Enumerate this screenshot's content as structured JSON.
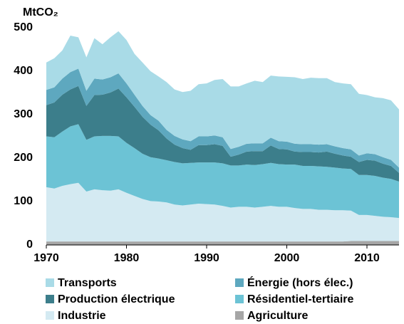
{
  "chart_data": {
    "type": "stacked_area",
    "y_label": "MtCO₂",
    "x": [
      1970,
      1971,
      1972,
      1973,
      1974,
      1975,
      1976,
      1977,
      1978,
      1979,
      1980,
      1981,
      1982,
      1983,
      1984,
      1985,
      1986,
      1987,
      1988,
      1989,
      1990,
      1991,
      1992,
      1993,
      1994,
      1995,
      1996,
      1997,
      1998,
      1999,
      2000,
      2001,
      2002,
      2003,
      2004,
      2005,
      2006,
      2007,
      2008,
      2009,
      2010,
      2011,
      2012,
      2013,
      2014
    ],
    "xlim": [
      1970,
      2014
    ],
    "xticks": [
      1970,
      1980,
      1990,
      2000,
      2010
    ],
    "ylim": [
      0,
      500
    ],
    "yticks": [
      0,
      100,
      200,
      300,
      400,
      500
    ],
    "grid": false,
    "legend": "bottom",
    "series": [
      {
        "name": "Transports",
        "color": "#a9dbe7",
        "values": [
          63,
          67,
          65,
          84,
          72,
          77,
          93,
          81,
          92,
          97,
          100,
          94,
          100,
          101,
          102,
          110,
          107,
          109,
          116,
          120,
          122,
          128,
          134,
          144,
          139,
          139,
          144,
          141,
          143,
          149,
          149,
          153,
          150,
          153,
          153,
          152,
          148,
          149,
          150,
          142,
          134,
          131,
          136,
          137,
          134
        ]
      },
      {
        "name": "Énergie (hors élec.)",
        "color": "#5ea8bf",
        "values": [
          35,
          35,
          37,
          40,
          40,
          35,
          38,
          35,
          35,
          35,
          32,
          28,
          25,
          22,
          22,
          20,
          20,
          20,
          20,
          20,
          20,
          20,
          20,
          18,
          18,
          18,
          18,
          18,
          18,
          18,
          18,
          18,
          18,
          18,
          18,
          17,
          17,
          17,
          17,
          15,
          15,
          15,
          15,
          14,
          12
        ]
      },
      {
        "name": "Production électrique",
        "color": "#3c7e8b",
        "values": [
          72,
          80,
          85,
          85,
          88,
          78,
          95,
          95,
          100,
          110,
          105,
          95,
          85,
          75,
          65,
          50,
          40,
          35,
          30,
          40,
          40,
          42,
          40,
          20,
          25,
          30,
          32,
          30,
          40,
          35,
          35,
          30,
          32,
          32,
          32,
          35,
          32,
          30,
          28,
          30,
          35,
          35,
          32,
          30,
          20
        ]
      },
      {
        "name": "Résidentiel-tertiaire",
        "color": "#6cc3d5",
        "values": [
          117,
          118,
          125,
          133,
          135,
          119,
          122,
          125,
          126,
          122,
          115,
          110,
          104,
          101,
          99,
          97,
          98,
          97,
          96,
          95,
          96,
          97,
          98,
          97,
          95,
          97,
          98,
          98,
          99,
          98,
          97,
          100,
          99,
          99,
          100,
          99,
          98,
          96,
          96,
          92,
          92,
          92,
          90,
          88,
          84
        ]
      },
      {
        "name": "Industrie",
        "color": "#d4eaf2",
        "values": [
          125,
          122,
          128,
          132,
          135,
          115,
          120,
          118,
          117,
          120,
          112,
          105,
          98,
          93,
          92,
          90,
          85,
          83,
          85,
          87,
          86,
          85,
          82,
          78,
          80,
          80,
          78,
          80,
          82,
          80,
          80,
          77,
          75,
          75,
          73,
          73,
          72,
          72,
          70,
          60,
          60,
          58,
          56,
          55,
          53
        ]
      },
      {
        "name": "Agriculture",
        "color": "#a6a6a6",
        "values": [
          8,
          8,
          8,
          8,
          8,
          8,
          8,
          8,
          8,
          8,
          8,
          8,
          8,
          8,
          8,
          8,
          8,
          8,
          8,
          8,
          8,
          8,
          8,
          8,
          8,
          8,
          8,
          8,
          8,
          8,
          8,
          8,
          8,
          8,
          8,
          8,
          8,
          8,
          9,
          9,
          9,
          9,
          9,
          9,
          9
        ]
      }
    ]
  }
}
